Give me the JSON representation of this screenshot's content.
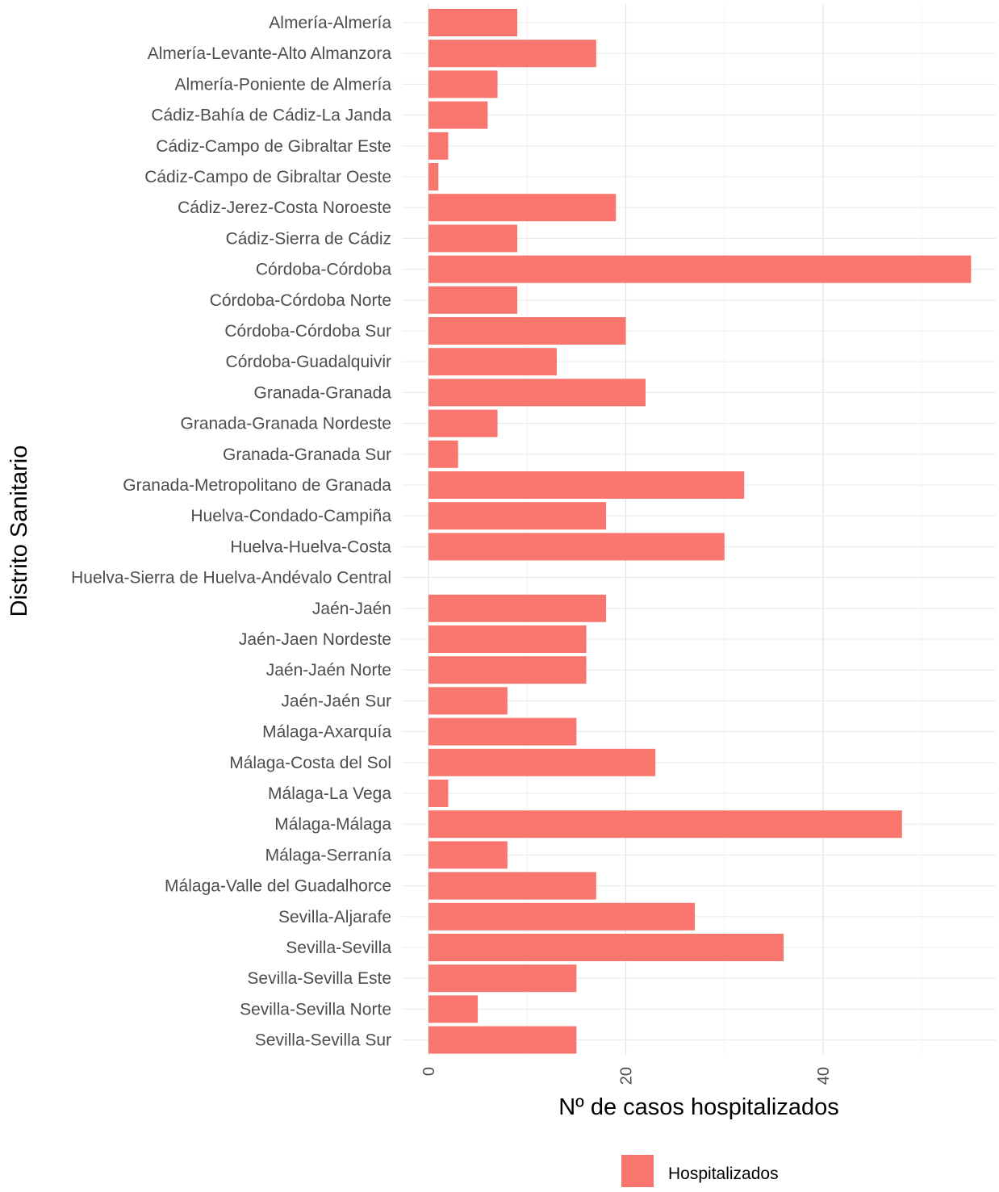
{
  "chart_data": {
    "type": "bar",
    "orientation": "horizontal",
    "categories": [
      "Almería-Almería",
      "Almería-Levante-Alto Almanzora",
      "Almería-Poniente de Almería",
      "Cádiz-Bahía de Cádiz-La Janda",
      "Cádiz-Campo de Gibraltar Este",
      "Cádiz-Campo de Gibraltar Oeste",
      "Cádiz-Jerez-Costa Noroeste",
      "Cádiz-Sierra de Cádiz",
      "Córdoba-Córdoba",
      "Córdoba-Córdoba Norte",
      "Córdoba-Córdoba Sur",
      "Córdoba-Guadalquivir",
      "Granada-Granada",
      "Granada-Granada Nordeste",
      "Granada-Granada Sur",
      "Granada-Metropolitano de Granada",
      "Huelva-Condado-Campiña",
      "Huelva-Huelva-Costa",
      "Huelva-Sierra de Huelva-Andévalo Central",
      "Jaén-Jaén",
      "Jaén-Jaen Nordeste",
      "Jaén-Jaén Norte",
      "Jaén-Jaén Sur",
      "Málaga-Axarquía",
      "Málaga-Costa del Sol",
      "Málaga-La Vega",
      "Málaga-Málaga",
      "Málaga-Serranía",
      "Málaga-Valle del Guadalhorce",
      "Sevilla-Aljarafe",
      "Sevilla-Sevilla",
      "Sevilla-Sevilla Este",
      "Sevilla-Sevilla Norte",
      "Sevilla-Sevilla Sur"
    ],
    "series": [
      {
        "name": "Hospitalizados",
        "color": "#F8766D",
        "values": [
          9,
          17,
          7,
          6,
          2,
          1,
          19,
          9,
          55,
          9,
          20,
          13,
          22,
          7,
          3,
          32,
          18,
          30,
          0,
          18,
          16,
          16,
          8,
          15,
          23,
          2,
          48,
          8,
          17,
          27,
          36,
          15,
          5,
          15
        ]
      }
    ],
    "xlabel": "Nº de casos hospitalizados",
    "ylabel": "Distrito Sanitario",
    "xlim": [
      0,
      57
    ],
    "xticks": [
      "0",
      "20",
      "40"
    ],
    "grid": true,
    "legend_position": "bottom"
  }
}
